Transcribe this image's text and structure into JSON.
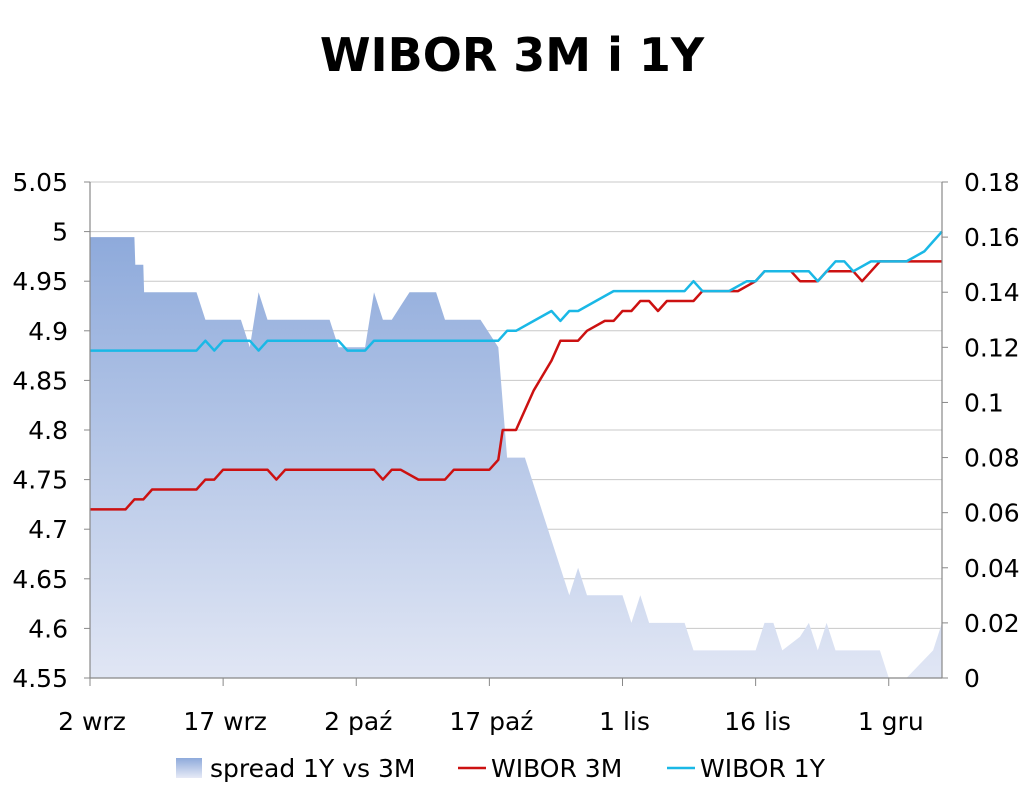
{
  "chart_data": {
    "type": "line",
    "title": "WIBOR 3M i 1Y",
    "xlabel": "",
    "ylabel": "",
    "x_ticks": [
      "2 wrz",
      "17 wrz",
      "2 paź",
      "17 paź",
      "1 lis",
      "16 lis",
      "1 gru"
    ],
    "x_tick_index": [
      0,
      15,
      30,
      45,
      60,
      75,
      90
    ],
    "x_count": 96,
    "y_left": {
      "min": 4.55,
      "max": 5.05,
      "ticks": [
        "5.05",
        "5",
        "4.95",
        "4.9",
        "4.85",
        "4.8",
        "4.75",
        "4.7",
        "4.65",
        "4.6",
        "4.55"
      ]
    },
    "y_right": {
      "min": 0,
      "max": 0.18,
      "ticks": [
        "0.18",
        "0.16",
        "0.14",
        "0.12",
        "0.1",
        "0.08",
        "0.06",
        "0.04",
        "0.02",
        "0"
      ]
    },
    "grid": true,
    "legend_position": "bottom",
    "series": [
      {
        "name": "spread 1Y vs 3M",
        "kind": "area",
        "axis": "right",
        "colors": [
          "#8eaadb",
          "#e6eaf6"
        ],
        "points": [
          [
            0,
            0.16
          ],
          [
            4,
            0.16
          ],
          [
            5,
            0.16
          ],
          [
            5.1,
            0.15
          ],
          [
            6,
            0.15
          ],
          [
            6.1,
            0.14
          ],
          [
            12,
            0.14
          ],
          [
            13,
            0.13
          ],
          [
            17,
            0.13
          ],
          [
            18,
            0.12
          ],
          [
            19,
            0.14
          ],
          [
            20,
            0.13
          ],
          [
            27,
            0.13
          ],
          [
            28,
            0.12
          ],
          [
            31,
            0.12
          ],
          [
            32,
            0.14
          ],
          [
            33,
            0.13
          ],
          [
            34,
            0.13
          ],
          [
            35,
            0.135
          ],
          [
            36,
            0.14
          ],
          [
            39,
            0.14
          ],
          [
            40,
            0.13
          ],
          [
            44,
            0.13
          ],
          [
            46,
            0.12
          ],
          [
            47,
            0.08
          ],
          [
            49,
            0.08
          ],
          [
            51,
            0.06
          ],
          [
            53,
            0.04
          ],
          [
            54,
            0.03
          ],
          [
            55,
            0.04
          ],
          [
            56,
            0.03
          ],
          [
            60,
            0.03
          ],
          [
            61,
            0.02
          ],
          [
            62,
            0.03
          ],
          [
            63,
            0.02
          ],
          [
            67,
            0.02
          ],
          [
            68,
            0.01
          ],
          [
            75,
            0.01
          ],
          [
            76,
            0.02
          ],
          [
            77,
            0.02
          ],
          [
            78,
            0.01
          ],
          [
            80,
            0.015
          ],
          [
            81,
            0.02
          ],
          [
            82,
            0.01
          ],
          [
            83,
            0.02
          ],
          [
            84,
            0.01
          ],
          [
            89,
            0.01
          ],
          [
            90,
            0
          ],
          [
            91,
            -0.01
          ],
          [
            92,
            0
          ],
          [
            95,
            0.01
          ],
          [
            96,
            0.02
          ]
        ]
      },
      {
        "name": "WIBOR 3M",
        "kind": "line",
        "axis": "left",
        "color": "#cc1111",
        "points": [
          [
            0,
            4.72
          ],
          [
            4,
            4.72
          ],
          [
            5,
            4.73
          ],
          [
            6,
            4.73
          ],
          [
            7,
            4.74
          ],
          [
            8,
            4.74
          ],
          [
            12,
            4.74
          ],
          [
            13,
            4.75
          ],
          [
            14,
            4.75
          ],
          [
            15,
            4.76
          ],
          [
            20,
            4.76
          ],
          [
            21,
            4.75
          ],
          [
            22,
            4.76
          ],
          [
            32,
            4.76
          ],
          [
            33,
            4.75
          ],
          [
            34,
            4.76
          ],
          [
            35,
            4.76
          ],
          [
            37,
            4.75
          ],
          [
            40,
            4.75
          ],
          [
            41,
            4.76
          ],
          [
            45,
            4.76
          ],
          [
            46,
            4.77
          ],
          [
            46.5,
            4.8
          ],
          [
            48,
            4.8
          ],
          [
            50,
            4.84
          ],
          [
            52,
            4.87
          ],
          [
            53,
            4.89
          ],
          [
            55,
            4.89
          ],
          [
            56,
            4.9
          ],
          [
            58,
            4.91
          ],
          [
            59,
            4.91
          ],
          [
            60,
            4.92
          ],
          [
            61,
            4.92
          ],
          [
            62,
            4.93
          ],
          [
            63,
            4.93
          ],
          [
            64,
            4.92
          ],
          [
            65,
            4.93
          ],
          [
            68,
            4.93
          ],
          [
            69,
            4.94
          ],
          [
            73,
            4.94
          ],
          [
            75,
            4.95
          ],
          [
            76,
            4.96
          ],
          [
            78,
            4.96
          ],
          [
            79,
            4.96
          ],
          [
            80,
            4.95
          ],
          [
            82,
            4.95
          ],
          [
            83,
            4.96
          ],
          [
            84,
            4.96
          ],
          [
            86,
            4.96
          ],
          [
            87,
            4.95
          ],
          [
            89,
            4.97
          ],
          [
            90,
            4.97
          ],
          [
            96,
            4.97
          ]
        ]
      },
      {
        "name": "WIBOR 1Y",
        "kind": "line",
        "axis": "left",
        "color": "#1ab8e6",
        "points": [
          [
            0,
            4.88
          ],
          [
            12,
            4.88
          ],
          [
            13,
            4.89
          ],
          [
            14,
            4.88
          ],
          [
            15,
            4.89
          ],
          [
            18,
            4.89
          ],
          [
            19,
            4.88
          ],
          [
            20,
            4.89
          ],
          [
            28,
            4.89
          ],
          [
            29,
            4.88
          ],
          [
            31,
            4.88
          ],
          [
            32,
            4.89
          ],
          [
            46,
            4.89
          ],
          [
            47,
            4.9
          ],
          [
            48,
            4.9
          ],
          [
            50,
            4.91
          ],
          [
            52,
            4.92
          ],
          [
            53,
            4.91
          ],
          [
            54,
            4.92
          ],
          [
            55,
            4.92
          ],
          [
            57,
            4.93
          ],
          [
            59,
            4.94
          ],
          [
            67,
            4.94
          ],
          [
            68,
            4.95
          ],
          [
            69,
            4.94
          ],
          [
            72,
            4.94
          ],
          [
            74,
            4.95
          ],
          [
            75,
            4.95
          ],
          [
            76,
            4.96
          ],
          [
            81,
            4.96
          ],
          [
            82,
            4.95
          ],
          [
            84,
            4.97
          ],
          [
            85,
            4.97
          ],
          [
            86,
            4.96
          ],
          [
            88,
            4.97
          ],
          [
            92,
            4.97
          ],
          [
            94,
            4.98
          ],
          [
            95,
            4.99
          ],
          [
            96,
            5.0
          ]
        ]
      }
    ]
  }
}
